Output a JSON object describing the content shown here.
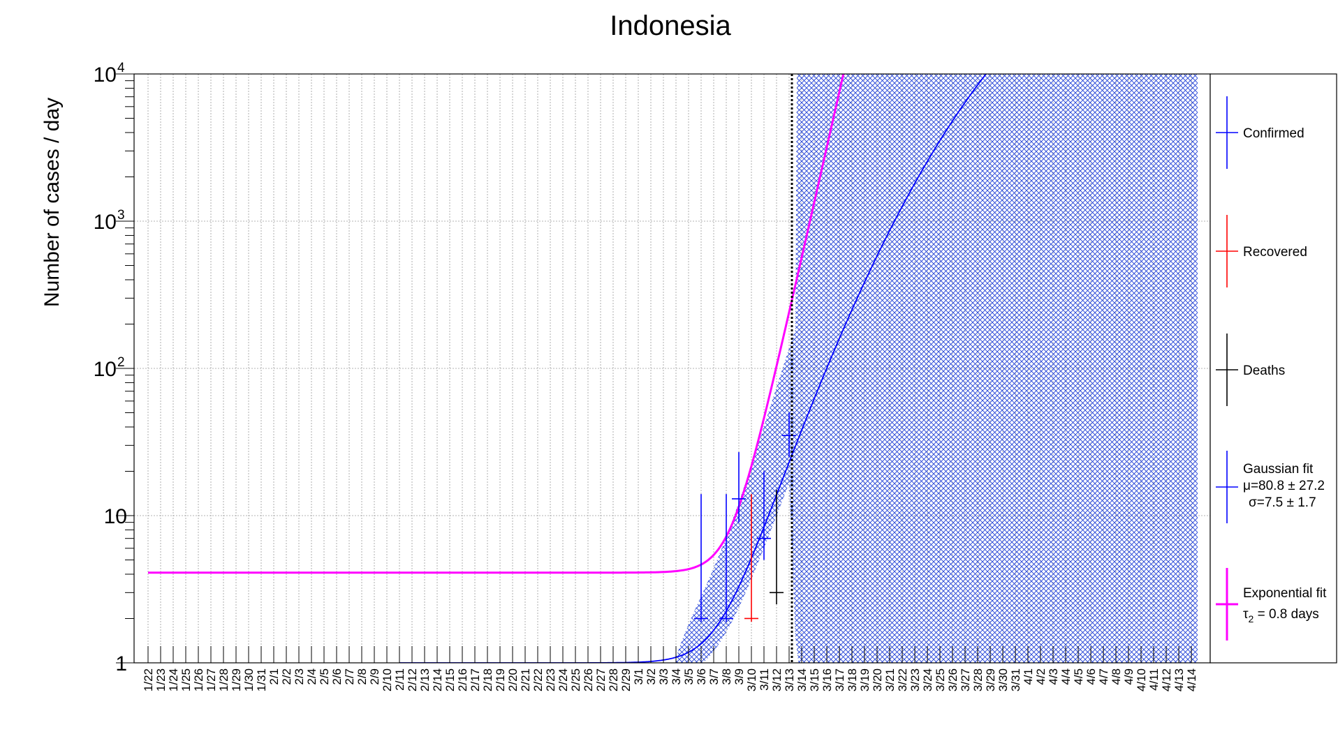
{
  "chart_data": {
    "type": "scatter",
    "title": "Indonesia",
    "xlabel": "",
    "ylabel": "Number of cases / day",
    "y_scale": "log",
    "ylim": [
      1,
      10000
    ],
    "y_ticks": [
      {
        "value": 1,
        "base": "1",
        "exp": ""
      },
      {
        "value": 10,
        "base": "10",
        "exp": ""
      },
      {
        "value": 100,
        "base": "10",
        "exp": "2"
      },
      {
        "value": 1000,
        "base": "10",
        "exp": "3"
      },
      {
        "value": 10000,
        "base": "10",
        "exp": "4"
      }
    ],
    "grid": true,
    "legend_position": "right",
    "x_categories": [
      "1/22",
      "1/23",
      "1/24",
      "1/25",
      "1/26",
      "1/27",
      "1/28",
      "1/29",
      "1/30",
      "1/31",
      "2/1",
      "2/2",
      "2/3",
      "2/4",
      "2/5",
      "2/6",
      "2/7",
      "2/8",
      "2/9",
      "2/10",
      "2/11",
      "2/12",
      "2/13",
      "2/14",
      "2/15",
      "2/16",
      "2/17",
      "2/18",
      "2/19",
      "2/20",
      "2/21",
      "2/22",
      "2/23",
      "2/24",
      "2/25",
      "2/26",
      "2/27",
      "2/28",
      "2/29",
      "3/1",
      "3/2",
      "3/3",
      "3/4",
      "3/5",
      "3/6",
      "3/7",
      "3/8",
      "3/9",
      "3/10",
      "3/11",
      "3/12",
      "3/13",
      "3/14",
      "3/15",
      "3/16",
      "3/17",
      "3/18",
      "3/19",
      "3/20",
      "3/21",
      "3/22",
      "3/23",
      "3/24",
      "3/25",
      "3/26",
      "3/27",
      "3/28",
      "3/29",
      "3/30",
      "3/31",
      "4/1",
      "4/2",
      "4/3",
      "4/4",
      "4/5",
      "4/6",
      "4/7",
      "4/8",
      "4/9",
      "4/10",
      "4/11",
      "4/12",
      "4/13",
      "4/14"
    ],
    "current_date_line": "3/13",
    "series": [
      {
        "name": "Confirmed",
        "color": "#0000ff",
        "points": [
          {
            "x": "3/6",
            "y": 2,
            "err_lo": 1.9,
            "err_hi": 14
          },
          {
            "x": "3/8",
            "y": 2,
            "err_lo": 1.9,
            "err_hi": 14
          },
          {
            "x": "3/9",
            "y": 13,
            "err_lo": 9,
            "err_hi": 27
          },
          {
            "x": "3/11",
            "y": 7,
            "err_lo": 5,
            "err_hi": 20
          },
          {
            "x": "3/13",
            "y": 35,
            "err_lo": 25,
            "err_hi": 50
          }
        ]
      },
      {
        "name": "Recovered",
        "color": "#ff0000",
        "points": [
          {
            "x": "3/10",
            "y": 2,
            "err_lo": 1.9,
            "err_hi": 14
          }
        ]
      },
      {
        "name": "Deaths",
        "color": "#000000",
        "points": [
          {
            "x": "3/12",
            "y": 3,
            "err_lo": 2.5,
            "err_hi": 15
          }
        ]
      }
    ],
    "fits": [
      {
        "name": "Gaussian fit",
        "label_lines": [
          "Gaussian fit",
          "μ=80.8 ± 27.2",
          "σ=7.5 ± 1.7"
        ],
        "color": "#0000ff",
        "mu": 80.8,
        "sigma": 7.5,
        "band": true
      },
      {
        "name": "Exponential fit",
        "label_lines": [
          "Exponential fit",
          "τ",
          "2",
          " = 0.8 days"
        ],
        "color": "#ff00ff",
        "constant": 4.1,
        "tau2": 0.8
      }
    ]
  }
}
